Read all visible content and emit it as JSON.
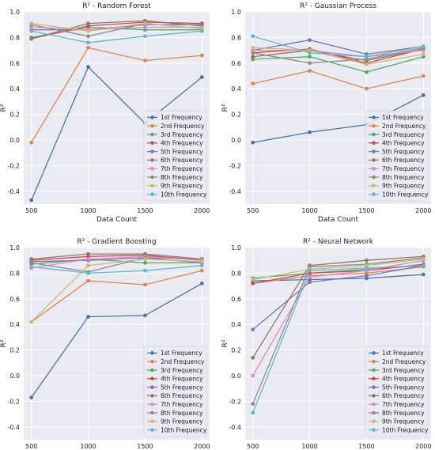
{
  "figure": {
    "background": "#ffffff",
    "plot_bg": "#eaeaf2",
    "grid_color": "#ffffff"
  },
  "chart_data": [
    {
      "type": "line",
      "title": "R² - Random Forest",
      "xlabel": "Data Count",
      "ylabel": "R²",
      "x": [
        500,
        1000,
        1500,
        2000
      ],
      "ylim": [
        -0.5,
        1.0
      ],
      "yticks": [
        -0.4,
        -0.2,
        0.0,
        0.2,
        0.4,
        0.6,
        0.8,
        1.0
      ],
      "grid": true,
      "legend_position": "lower-right",
      "series": [
        {
          "name": "1st Frequency",
          "color": "#4c72b0",
          "values": [
            -0.47,
            0.57,
            0.13,
            0.49
          ]
        },
        {
          "name": "2nd Frequency",
          "color": "#dd8452",
          "values": [
            -0.02,
            0.72,
            0.62,
            0.66
          ]
        },
        {
          "name": "3rd Frequency",
          "color": "#55a868",
          "values": [
            0.8,
            0.88,
            0.86,
            0.86
          ]
        },
        {
          "name": "4th Frequency",
          "color": "#c44e52",
          "values": [
            0.79,
            0.89,
            0.92,
            0.91
          ]
        },
        {
          "name": "5th Frequency",
          "color": "#8172b3",
          "values": [
            0.86,
            0.86,
            0.9,
            0.9
          ]
        },
        {
          "name": "6th Frequency",
          "color": "#937860",
          "values": [
            0.79,
            0.91,
            0.93,
            0.89
          ]
        },
        {
          "name": "7th Frequency",
          "color": "#da8bc3",
          "values": [
            0.88,
            0.86,
            0.88,
            0.88
          ]
        },
        {
          "name": "8th Frequency",
          "color": "#8c8c8c",
          "values": [
            0.9,
            0.81,
            0.91,
            0.87
          ]
        },
        {
          "name": "9th Frequency",
          "color": "#ccb974",
          "values": [
            0.91,
            0.85,
            0.91,
            0.87
          ]
        },
        {
          "name": "10th Frequency",
          "color": "#64b5cd",
          "values": [
            0.85,
            0.76,
            0.81,
            0.85
          ]
        }
      ]
    },
    {
      "type": "line",
      "title": "R² - Gaussian Process",
      "xlabel": "Data Count",
      "ylabel": "R²",
      "x": [
        500,
        1000,
        1500,
        2000
      ],
      "ylim": [
        -0.5,
        1.0
      ],
      "yticks": [
        -0.4,
        -0.2,
        0.0,
        0.2,
        0.4,
        0.6,
        0.8,
        1.0
      ],
      "grid": true,
      "legend_position": "lower-right",
      "series": [
        {
          "name": "1st Frequency",
          "color": "#4c72b0",
          "values": [
            -0.02,
            0.06,
            0.12,
            0.35
          ]
        },
        {
          "name": "2nd Frequency",
          "color": "#dd8452",
          "values": [
            0.44,
            0.54,
            0.4,
            0.5
          ]
        },
        {
          "name": "3rd Frequency",
          "color": "#55a868",
          "values": [
            0.63,
            0.65,
            0.53,
            0.65
          ]
        },
        {
          "name": "4th Frequency",
          "color": "#c44e52",
          "values": [
            0.68,
            0.71,
            0.6,
            0.71
          ]
        },
        {
          "name": "5th Frequency",
          "color": "#8172b3",
          "values": [
            0.7,
            0.78,
            0.67,
            0.73
          ]
        },
        {
          "name": "6th Frequency",
          "color": "#937860",
          "values": [
            0.65,
            0.7,
            0.62,
            0.71
          ]
        },
        {
          "name": "7th Frequency",
          "color": "#da8bc3",
          "values": [
            0.7,
            0.7,
            0.65,
            0.7
          ]
        },
        {
          "name": "8th Frequency",
          "color": "#8c8c8c",
          "values": [
            0.68,
            0.6,
            0.63,
            0.72
          ]
        },
        {
          "name": "9th Frequency",
          "color": "#ccb974",
          "values": [
            0.72,
            0.7,
            0.59,
            0.67
          ]
        },
        {
          "name": "10th Frequency",
          "color": "#64b5cd",
          "values": [
            0.81,
            0.68,
            0.65,
            0.73
          ]
        }
      ]
    },
    {
      "type": "line",
      "title": "R² - Gradient Boosting",
      "xlabel": "Data Count",
      "ylabel": "R²",
      "x": [
        500,
        1000,
        1500,
        2000
      ],
      "ylim": [
        -0.5,
        1.0
      ],
      "yticks": [
        -0.4,
        -0.2,
        0.0,
        0.2,
        0.4,
        0.6,
        0.8,
        1.0
      ],
      "grid": true,
      "legend_position": "lower-right",
      "series": [
        {
          "name": "1st Frequency",
          "color": "#4c72b0",
          "values": [
            -0.17,
            0.46,
            0.47,
            0.72
          ]
        },
        {
          "name": "2nd Frequency",
          "color": "#dd8452",
          "values": [
            0.42,
            0.74,
            0.71,
            0.82
          ]
        },
        {
          "name": "3rd Frequency",
          "color": "#55a868",
          "values": [
            0.87,
            0.91,
            0.88,
            0.88
          ]
        },
        {
          "name": "4th Frequency",
          "color": "#c44e52",
          "values": [
            0.9,
            0.93,
            0.94,
            0.9
          ]
        },
        {
          "name": "5th Frequency",
          "color": "#8172b3",
          "values": [
            0.89,
            0.9,
            0.92,
            0.91
          ]
        },
        {
          "name": "6th Frequency",
          "color": "#937860",
          "values": [
            0.91,
            0.95,
            0.95,
            0.91
          ]
        },
        {
          "name": "7th Frequency",
          "color": "#da8bc3",
          "values": [
            0.84,
            0.91,
            0.93,
            0.9
          ]
        },
        {
          "name": "8th Frequency",
          "color": "#8c8c8c",
          "values": [
            0.88,
            0.81,
            0.92,
            0.88
          ]
        },
        {
          "name": "9th Frequency",
          "color": "#ccb974",
          "values": [
            0.42,
            0.86,
            0.91,
            0.89
          ]
        },
        {
          "name": "10th Frequency",
          "color": "#64b5cd",
          "values": [
            0.85,
            0.8,
            0.82,
            0.86
          ]
        }
      ]
    },
    {
      "type": "line",
      "title": "R² - Neural Network",
      "xlabel": "Data Count",
      "ylabel": "R²",
      "x": [
        500,
        1000,
        1500,
        2000
      ],
      "ylim": [
        -0.5,
        1.0
      ],
      "yticks": [
        -0.4,
        -0.2,
        0.0,
        0.2,
        0.4,
        0.6,
        0.8,
        1.0
      ],
      "grid": true,
      "legend_position": "lower-right",
      "series": [
        {
          "name": "1st Frequency",
          "color": "#4c72b0",
          "values": [
            0.74,
            0.75,
            0.76,
            0.79
          ]
        },
        {
          "name": "2nd Frequency",
          "color": "#dd8452",
          "values": [
            0.72,
            0.78,
            0.8,
            0.85
          ]
        },
        {
          "name": "3rd Frequency",
          "color": "#55a868",
          "values": [
            0.76,
            0.8,
            0.83,
            0.86
          ]
        },
        {
          "name": "4th Frequency",
          "color": "#c44e52",
          "values": [
            0.72,
            0.8,
            0.82,
            0.87
          ]
        },
        {
          "name": "5th Frequency",
          "color": "#8172b3",
          "values": [
            0.36,
            0.73,
            0.78,
            0.86
          ]
        },
        {
          "name": "6th Frequency",
          "color": "#937860",
          "values": [
            0.14,
            0.86,
            0.9,
            0.93
          ]
        },
        {
          "name": "7th Frequency",
          "color": "#da8bc3",
          "values": [
            0.0,
            0.77,
            0.82,
            0.9
          ]
        },
        {
          "name": "8th Frequency",
          "color": "#8c8c8c",
          "values": [
            -0.22,
            0.85,
            0.87,
            0.92
          ]
        },
        {
          "name": "9th Frequency",
          "color": "#ccb974",
          "values": [
            0.75,
            0.83,
            0.86,
            0.91
          ]
        },
        {
          "name": "10th Frequency",
          "color": "#64b5cd",
          "values": [
            -0.29,
            0.82,
            0.84,
            0.86
          ]
        }
      ]
    }
  ]
}
